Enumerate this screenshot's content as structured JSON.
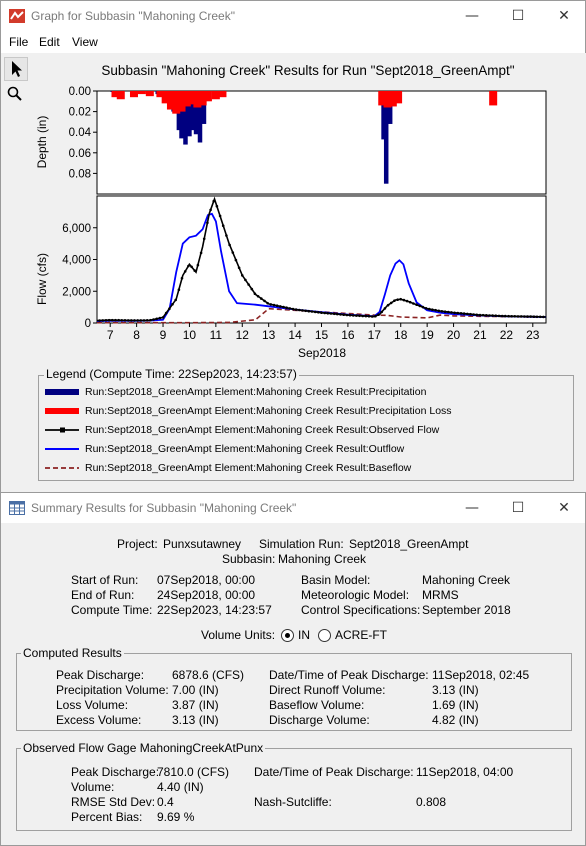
{
  "graph_window": {
    "title": "Graph for Subbasin \"Mahoning Creek\"",
    "menu": [
      "File",
      "Edit",
      "View"
    ],
    "tools": [
      "pointer-tool",
      "zoom-tool"
    ]
  },
  "chart_data": [
    {
      "type": "bar",
      "title": "Subbasin \"Mahoning Creek\" Results for Run \"Sept2018_GreenAmpt\"",
      "ylabel": "Depth (in)",
      "ylim": [
        0.0,
        0.1
      ],
      "y_inverted": true,
      "yticks": [
        "0.00",
        "0.02",
        "0.04",
        "0.06",
        "0.08"
      ],
      "x_range_days": [
        6.5,
        23.5
      ],
      "series": [
        {
          "name": "Precipitation",
          "color": "#000080",
          "x": [
            7.1,
            8.8,
            9.4,
            9.6,
            9.7,
            9.85,
            10.0,
            10.1,
            10.25,
            10.4,
            10.55,
            17.35,
            17.45,
            17.6,
            17.75
          ],
          "values": [
            0.001,
            0.003,
            0.02,
            0.038,
            0.046,
            0.052,
            0.044,
            0.038,
            0.042,
            0.05,
            0.032,
            0.047,
            0.09,
            0.032,
            0.012
          ]
        },
        {
          "name": "Precipitation Loss",
          "color": "#ff0000",
          "x": [
            7.2,
            7.4,
            7.9,
            8.2,
            8.5,
            8.9,
            9.1,
            9.3,
            9.5,
            9.7,
            9.9,
            10.1,
            10.3,
            10.5,
            10.7,
            11.0,
            11.25,
            17.3,
            17.5,
            17.7,
            17.9,
            21.5
          ],
          "values": [
            0.006,
            0.008,
            0.006,
            0.003,
            0.005,
            0.006,
            0.012,
            0.018,
            0.022,
            0.02,
            0.015,
            0.013,
            0.016,
            0.014,
            0.01,
            0.008,
            0.006,
            0.014,
            0.016,
            0.015,
            0.012,
            0.014
          ]
        }
      ]
    },
    {
      "type": "line",
      "ylabel": "Flow (cfs)",
      "xlabel": "Sep2018",
      "ylim": [
        0,
        8000
      ],
      "yticks": [
        "0",
        "2,000",
        "4,000",
        "6,000"
      ],
      "x_tick_labels": [
        "7",
        "8",
        "9",
        "10",
        "11",
        "12",
        "13",
        "14",
        "15",
        "16",
        "17",
        "18",
        "19",
        "20",
        "21",
        "22",
        "23"
      ],
      "series": [
        {
          "name": "Observed Flow",
          "color": "#000000",
          "x": [
            6.5,
            7,
            8,
            8.5,
            9,
            9.5,
            9.75,
            10,
            10.25,
            10.5,
            10.75,
            10.95,
            11.15,
            11.5,
            12,
            12.5,
            13,
            14,
            15,
            16,
            17,
            17.2,
            17.5,
            17.8,
            18,
            18.3,
            18.6,
            19,
            19.5,
            20,
            21,
            22,
            23,
            23.5
          ],
          "values": [
            150,
            180,
            160,
            170,
            350,
            1500,
            3000,
            3700,
            3200,
            4800,
            6900,
            7810,
            6800,
            5000,
            3000,
            1800,
            1200,
            850,
            650,
            500,
            400,
            550,
            1100,
            1450,
            1500,
            1350,
            1150,
            900,
            750,
            650,
            500,
            430,
            400,
            380
          ]
        },
        {
          "name": "Outflow",
          "color": "#0000ff",
          "x": [
            6.5,
            7,
            8,
            8.5,
            9,
            9.25,
            9.5,
            9.75,
            10,
            10.25,
            10.5,
            10.7,
            10.85,
            11.0,
            11.2,
            11.5,
            11.8,
            12.5,
            13,
            14,
            15,
            16,
            17,
            17.2,
            17.4,
            17.6,
            17.8,
            17.95,
            18.1,
            18.3,
            18.6,
            19,
            19.5,
            20,
            21,
            22,
            23,
            23.5
          ],
          "values": [
            120,
            130,
            140,
            150,
            200,
            900,
            3200,
            5000,
            5400,
            5500,
            5900,
            6800,
            6878.6,
            6400,
            4500,
            2000,
            1250,
            1150,
            1050,
            850,
            680,
            520,
            420,
            700,
            1800,
            3000,
            3750,
            3950,
            3700,
            2500,
            1300,
            800,
            650,
            560,
            470,
            420,
            390,
            380
          ]
        },
        {
          "name": "Baseflow",
          "color": "#8b2323",
          "x": [
            6.5,
            10,
            11.5,
            12.5,
            13,
            14,
            15,
            16,
            17,
            17.5,
            18,
            19,
            19.5,
            20,
            21,
            22,
            23,
            23.5
          ],
          "values": [
            20,
            20,
            40,
            200,
            900,
            800,
            700,
            600,
            500,
            480,
            380,
            320,
            500,
            450,
            420,
            400,
            380,
            370
          ]
        }
      ]
    }
  ],
  "legend": {
    "title": "Legend (Compute Time: 22Sep2023, 14:23:57)",
    "items": [
      {
        "label": "Run:Sept2018_GreenAmpt Element:Mahoning Creek Result:Precipitation",
        "color": "#000080",
        "style": "thick"
      },
      {
        "label": "Run:Sept2018_GreenAmpt Element:Mahoning Creek Result:Precipitation Loss",
        "color": "#ff0000",
        "style": "thick"
      },
      {
        "label": "Run:Sept2018_GreenAmpt Element:Mahoning Creek Result:Observed Flow",
        "color": "#000000",
        "style": "marker"
      },
      {
        "label": "Run:Sept2018_GreenAmpt Element:Mahoning Creek Result:Outflow",
        "color": "#0000ff",
        "style": "line"
      },
      {
        "label": "Run:Sept2018_GreenAmpt Element:Mahoning Creek Result:Baseflow",
        "color": "#8b2323",
        "style": "dashed"
      }
    ]
  },
  "summary_window": {
    "title": "Summary Results for Subbasin \"Mahoning Creek\"",
    "project_label": "Project:",
    "project": "Punxsutawney",
    "sim_run_label": "Simulation Run:",
    "sim_run": "Sept2018_GreenAmpt",
    "subbasin_label": "Subbasin:",
    "subbasin": "Mahoning Creek",
    "start_label": "Start of Run:",
    "start": "07Sep2018, 00:00",
    "end_label": "End of Run:",
    "end": "24Sep2018, 00:00",
    "compute_label": "Compute Time:",
    "compute": "22Sep2023, 14:23:57",
    "basin_model_label": "Basin Model:",
    "basin_model": "Mahoning Creek",
    "met_model_label": "Meteorologic Model:",
    "met_model": "MRMS",
    "control_label": "Control Specifications:",
    "control": "September 2018",
    "volume_units_label": "Volume Units:",
    "unit_in": "IN",
    "unit_acre_ft": "ACRE-FT",
    "computed": {
      "title": "Computed Results",
      "peak_discharge_label": "Peak Discharge:",
      "peak_discharge": "6878.6 (CFS)",
      "precip_volume_label": "Precipitation Volume:",
      "precip_volume": "7.00 (IN)",
      "loss_volume_label": "Loss Volume:",
      "loss_volume": "3.87 (IN)",
      "excess_volume_label": "Excess Volume:",
      "excess_volume": "3.13 (IN)",
      "peak_time_label": "Date/Time of Peak Discharge:",
      "peak_time": "11Sep2018, 02:45",
      "direct_runoff_label": "Direct Runoff Volume:",
      "direct_runoff": "3.13 (IN)",
      "baseflow_volume_label": "Baseflow Volume:",
      "baseflow_volume": "1.69 (IN)",
      "discharge_volume_label": "Discharge Volume:",
      "discharge_volume": "4.82 (IN)"
    },
    "observed": {
      "title": "Observed Flow Gage MahoningCreekAtPunx",
      "peak_discharge_label": "Peak Discharge:",
      "peak_discharge": "7810.0 (CFS)",
      "volume_label": "Volume:",
      "volume": "4.40 (IN)",
      "rmse_label": "RMSE Std Dev:",
      "rmse": "0.4",
      "pct_bias_label": "Percent Bias:",
      "pct_bias": "9.69 %",
      "peak_time_label": "Date/Time of Peak Discharge:",
      "peak_time": "11Sep2018, 04:00",
      "nash_label": "Nash-Sutcliffe:",
      "nash": "0.808"
    }
  },
  "window_controls": {
    "minimize": "—",
    "maximize": "☐",
    "close": "✕"
  }
}
